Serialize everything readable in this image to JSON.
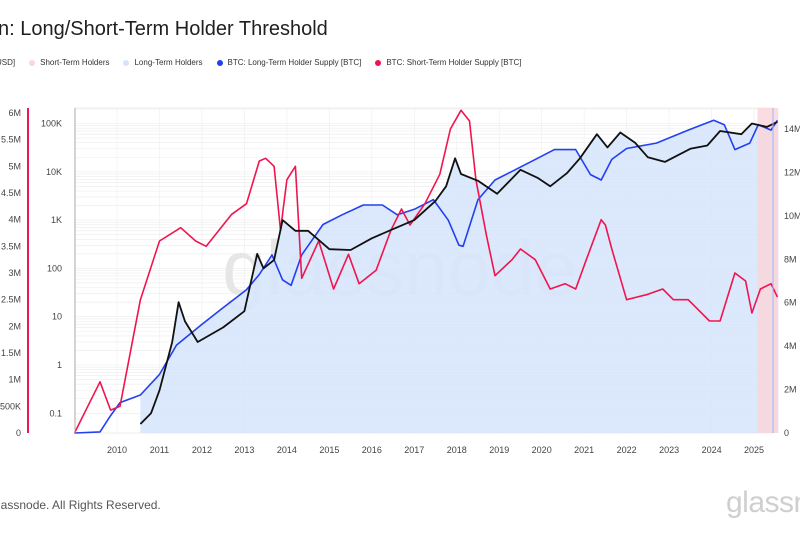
{
  "header": {
    "title": "n: Long/Short-Term Holder Threshold"
  },
  "legend": [
    {
      "label": "USD]",
      "color": ""
    },
    {
      "label": "Short-Term Holders",
      "color": "#f9d6dc"
    },
    {
      "label": "Long-Term Holders",
      "color": "#d6e4fb"
    },
    {
      "label": "BTC: Long-Term Holder Supply [BTC]",
      "color": "#2340f0"
    },
    {
      "label": "BTC: Short-Term Holder Supply [BTC]",
      "color": "#f0154f"
    }
  ],
  "footer": {
    "copyright": "lassnode. All Rights Reserved.",
    "logo": "glassn"
  },
  "watermark": "glassnode",
  "chart_data": {
    "type": "line",
    "x_range": [
      2009.0,
      2025.57
    ],
    "x_ticks": [
      "2010",
      "2011",
      "2012",
      "2013",
      "2014",
      "2015",
      "2016",
      "2017",
      "2018",
      "2019",
      "2020",
      "2021",
      "2022",
      "2023",
      "2024",
      "2025"
    ],
    "axes": {
      "sth_supply": {
        "side": "far-left",
        "range": [
          0,
          6000000
        ],
        "ticks": [
          "0",
          "500K",
          "1M",
          "1.5M",
          "2M",
          "2.5M",
          "3M",
          "3.5M",
          "4M",
          "4.5M",
          "5M",
          "5.5M",
          "6M"
        ],
        "color": "#f0154f"
      },
      "price": {
        "side": "left",
        "scale": "log",
        "range": [
          0.06,
          160000
        ],
        "ticks": [
          "0.1",
          "1",
          "10",
          "100",
          "1K",
          "10K",
          "100K"
        ]
      },
      "lth_supply": {
        "side": "right",
        "range": [
          0,
          14600000
        ],
        "ticks": [
          "0",
          "2M",
          "4M",
          "6M",
          "8M",
          "10M",
          "12M",
          "14M"
        ],
        "color": "#5b7bf5"
      }
    },
    "grid": true,
    "shaded_regions": [
      {
        "name": "Short-Term Holders",
        "from": 2025.08,
        "to": 2025.57,
        "color": "#f9d6dc"
      },
      {
        "name": "Long-Term Holders",
        "under": "max(price, lth_supply)",
        "color": "#d6e4fb"
      }
    ],
    "series": [
      {
        "name": "BTC: Short-Term Holder Supply [BTC]",
        "axis": "sth_supply",
        "color": "#f0154f",
        "unit": "M",
        "x": [
          2009.0,
          2009.6,
          2009.85,
          2010.07,
          2010.55,
          2011.0,
          2011.5,
          2011.85,
          2012.1,
          2012.7,
          2013.05,
          2013.35,
          2013.5,
          2013.7,
          2013.85,
          2014.0,
          2014.2,
          2014.35,
          2014.75,
          2015.1,
          2015.45,
          2015.7,
          2016.1,
          2016.45,
          2016.7,
          2016.9,
          2017.25,
          2017.6,
          2017.85,
          2018.1,
          2018.3,
          2018.45,
          2018.7,
          2018.9,
          2019.3,
          2019.5,
          2019.85,
          2020.2,
          2020.55,
          2020.8,
          2021.05,
          2021.4,
          2021.5,
          2021.65,
          2022.0,
          2022.5,
          2022.85,
          2023.1,
          2023.45,
          2023.95,
          2024.2,
          2024.55,
          2024.8,
          2024.95,
          2025.15,
          2025.4,
          2025.55
        ],
        "y": [
          0,
          0.96,
          0.43,
          0.5,
          2.5,
          3.6,
          3.85,
          3.6,
          3.5,
          4.1,
          4.3,
          5.1,
          5.15,
          5.0,
          3.8,
          4.75,
          5.0,
          2.9,
          3.6,
          2.7,
          3.35,
          2.8,
          3.05,
          3.8,
          4.2,
          3.9,
          4.3,
          4.85,
          5.7,
          6.05,
          5.85,
          4.75,
          3.7,
          2.95,
          3.25,
          3.45,
          3.25,
          2.7,
          2.8,
          2.7,
          3.25,
          4.0,
          3.9,
          3.45,
          2.5,
          2.6,
          2.7,
          2.5,
          2.5,
          2.1,
          2.1,
          3.0,
          2.85,
          2.25,
          2.7,
          2.8,
          2.55
        ]
      },
      {
        "name": "BTC: Long-Term Holder Supply [BTC]",
        "axis": "lth_supply",
        "color": "#2340f0",
        "unit": "M",
        "x": [
          2009.0,
          2009.6,
          2009.85,
          2010.07,
          2010.55,
          2011.0,
          2011.4,
          2012.0,
          2012.45,
          2013.05,
          2013.35,
          2013.65,
          2013.9,
          2014.1,
          2014.35,
          2014.85,
          2015.3,
          2015.8,
          2016.25,
          2016.6,
          2017.0,
          2017.45,
          2017.8,
          2018.05,
          2018.15,
          2018.5,
          2018.9,
          2019.35,
          2019.85,
          2020.3,
          2020.8,
          2021.15,
          2021.4,
          2021.65,
          2022.0,
          2022.7,
          2023.45,
          2024.05,
          2024.3,
          2024.55,
          2024.9,
          2025.1,
          2025.4,
          2025.55
        ],
        "y": [
          0,
          0.05,
          0.8,
          1.4,
          1.75,
          2.7,
          4.05,
          5.0,
          5.7,
          6.6,
          7.3,
          8.2,
          7.05,
          6.8,
          8.2,
          9.6,
          10.05,
          10.5,
          10.5,
          10.05,
          10.3,
          10.75,
          9.8,
          8.65,
          8.6,
          10.75,
          11.65,
          12.1,
          12.6,
          13.05,
          13.05,
          11.9,
          11.65,
          12.6,
          13.1,
          13.35,
          13.95,
          14.4,
          14.2,
          13.05,
          13.35,
          14.2,
          13.95,
          14.4
        ]
      },
      {
        "name": "Price [USD]",
        "axis": "price",
        "color": "#111111",
        "x": [
          2010.55,
          2010.8,
          2011.0,
          2011.3,
          2011.45,
          2011.6,
          2011.9,
          2012.5,
          2013.0,
          2013.3,
          2013.45,
          2013.7,
          2013.9,
          2014.2,
          2014.5,
          2015.0,
          2015.5,
          2016.0,
          2016.5,
          2017.0,
          2017.5,
          2017.75,
          2017.96,
          2018.1,
          2018.5,
          2018.95,
          2019.5,
          2019.9,
          2020.2,
          2020.6,
          2020.9,
          2021.3,
          2021.55,
          2021.85,
          2022.2,
          2022.5,
          2022.9,
          2023.5,
          2023.9,
          2024.2,
          2024.7,
          2024.95,
          2025.3,
          2025.55
        ],
        "y": [
          0.06,
          0.1,
          0.3,
          3,
          20,
          8,
          3,
          6,
          13,
          200,
          100,
          150,
          1000,
          600,
          600,
          250,
          240,
          420,
          650,
          1000,
          2500,
          5000,
          19000,
          9000,
          6500,
          3500,
          11000,
          7500,
          5000,
          9500,
          19000,
          60000,
          32000,
          65000,
          40000,
          20000,
          16000,
          30000,
          35000,
          70000,
          60000,
          100000,
          85000,
          108000
        ]
      }
    ]
  }
}
